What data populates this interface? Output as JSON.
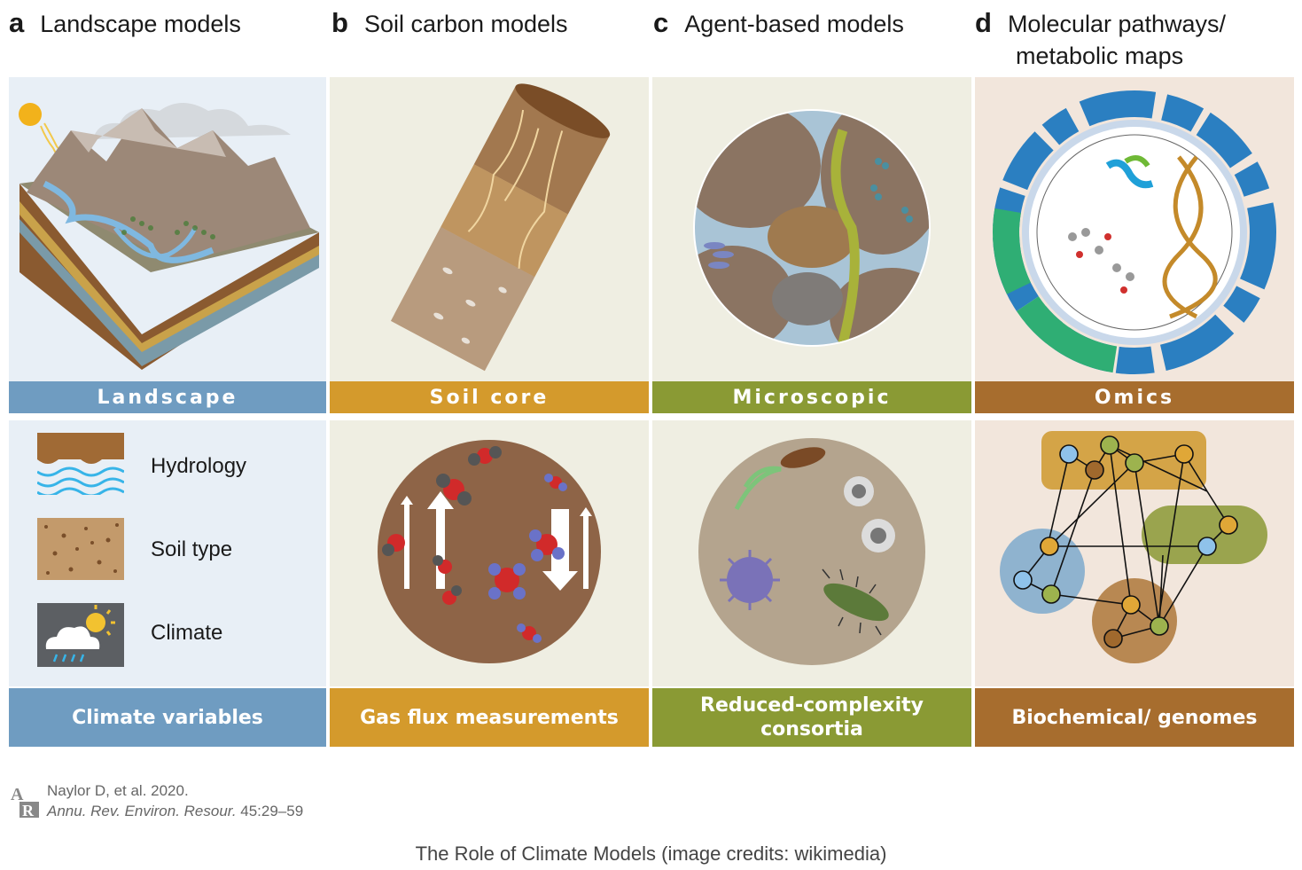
{
  "panels": [
    {
      "letter": "a",
      "title": "Landscape models",
      "band": "Landscape",
      "footer": "Climate variables",
      "color": "#6f9cc1"
    },
    {
      "letter": "b",
      "title": "Soil carbon models",
      "band": "Soil core",
      "footer": "Gas flux measurements",
      "color": "#d49a2c"
    },
    {
      "letter": "c",
      "title": "Agent-based models",
      "band": "Microscopic",
      "footer": "Reduced-complexity consortia",
      "color": "#8a9a34"
    },
    {
      "letter": "d",
      "title_line1": "Molecular pathways/",
      "title_line2": "metabolic maps",
      "band": "Omics",
      "footer": "Biochemical/ genomes",
      "color": "#a76d2e"
    }
  ],
  "legend": {
    "items": [
      {
        "label": "Hydrology",
        "icon": "hydrology-icon"
      },
      {
        "label": "Soil type",
        "icon": "soil-type-icon"
      },
      {
        "label": "Climate",
        "icon": "climate-icon"
      }
    ]
  },
  "citation": {
    "logo_text": "AR",
    "line1": "Naylor D, et al. 2020.",
    "journal": "Annu. Rev. Environ. Resour.",
    "pages": " 45:29–59"
  },
  "caption": "The Role of Climate Models (image credits: wikimedia)"
}
